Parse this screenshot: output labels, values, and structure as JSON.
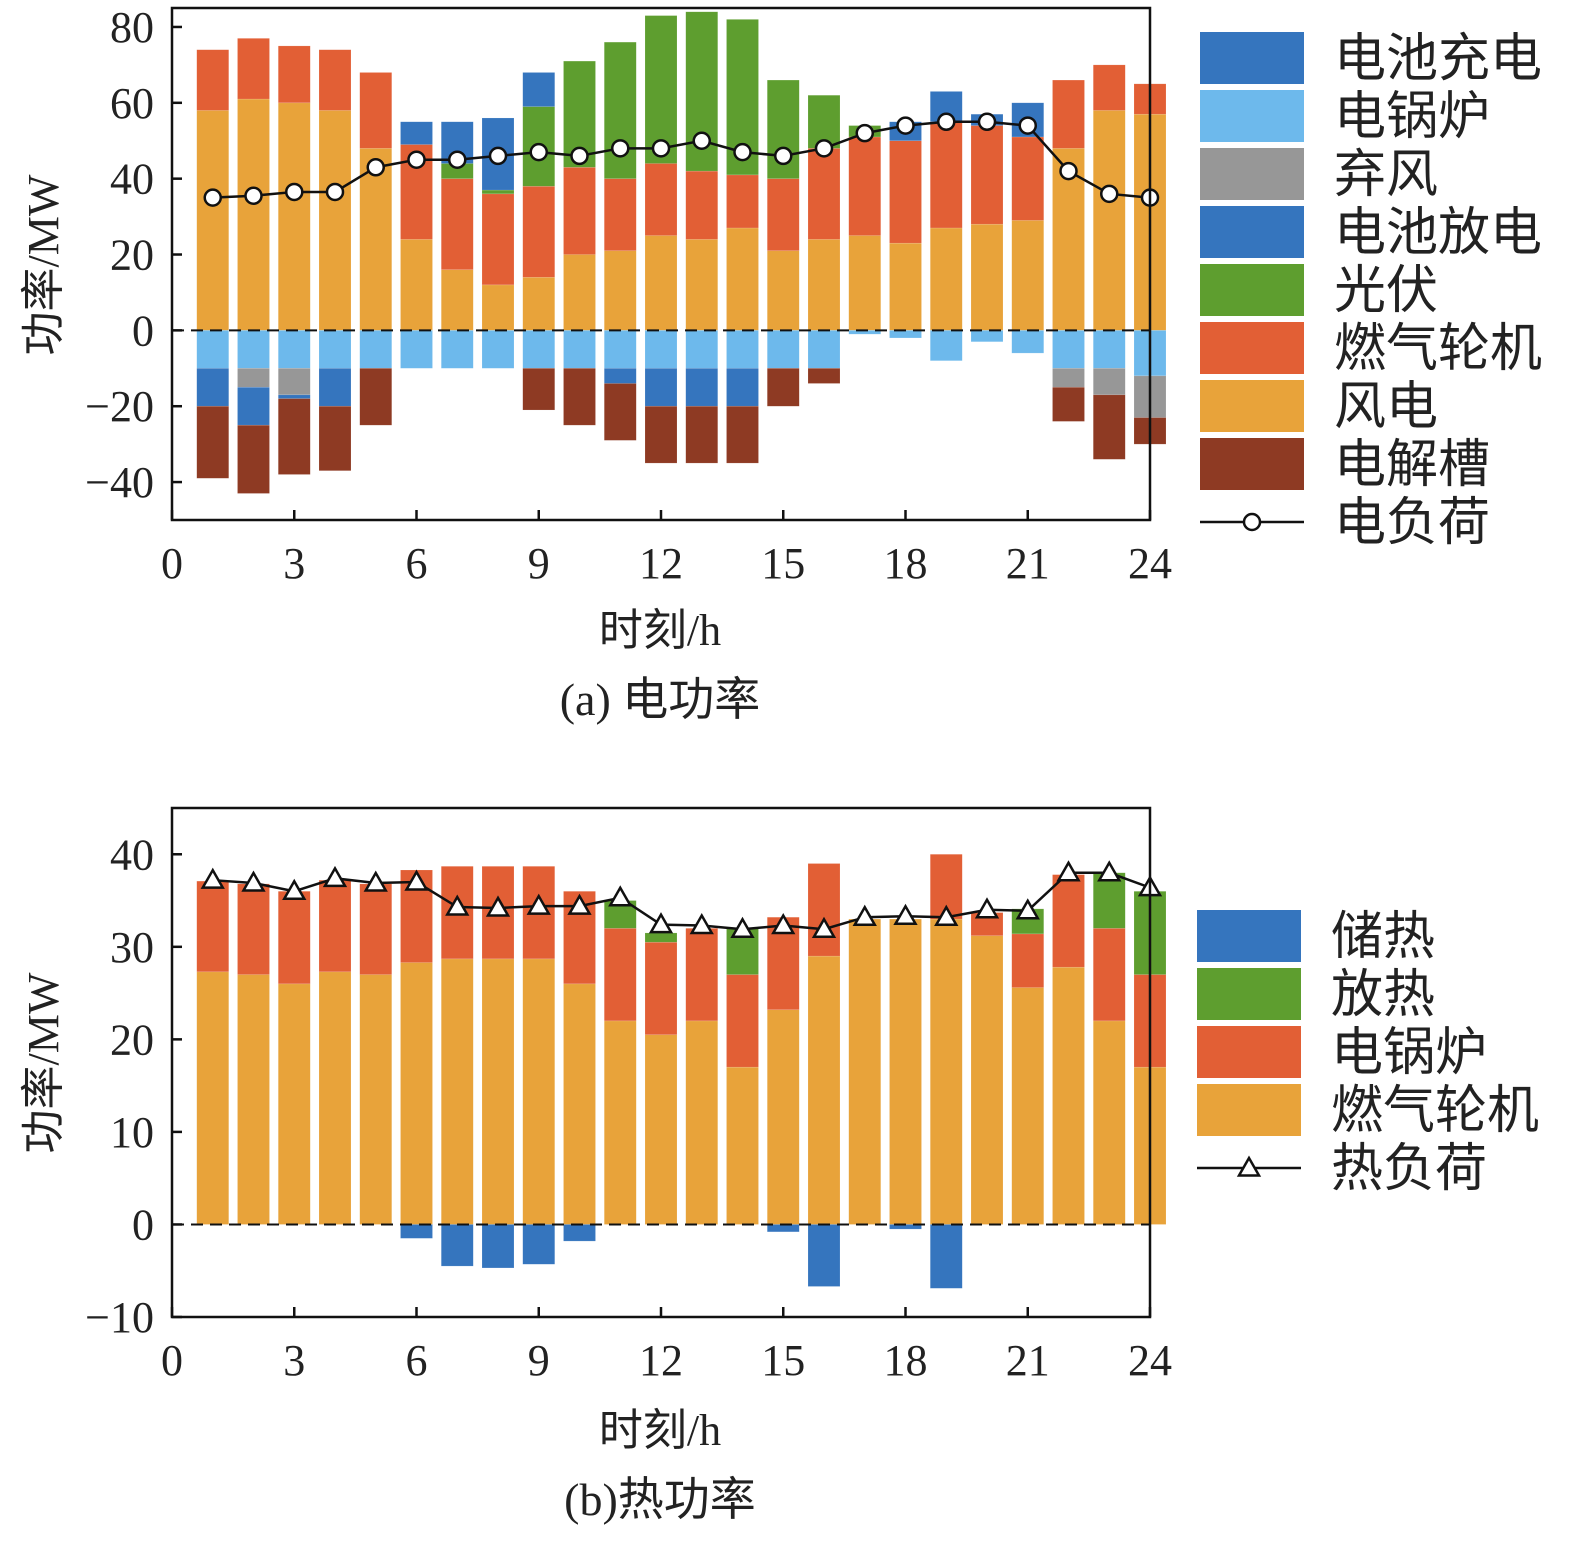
{
  "chart_data": [
    {
      "type": "bar",
      "stacked": true,
      "caption": "(a) 电功率",
      "xlabel": "时刻/h",
      "ylabel": "功率/MW",
      "xlim": [
        0,
        24
      ],
      "ylim": [
        -50,
        85
      ],
      "xticks": [
        0,
        3,
        6,
        9,
        12,
        15,
        18,
        21,
        24
      ],
      "yticks": [
        -40,
        -20,
        0,
        20,
        40,
        60,
        80
      ],
      "x": [
        1,
        2,
        3,
        4,
        5,
        6,
        7,
        8,
        9,
        10,
        11,
        12,
        13,
        14,
        15,
        16,
        17,
        18,
        19,
        20,
        21,
        22,
        23,
        24
      ],
      "positive_series": [
        {
          "name": "风电",
          "color": "#E8A33A",
          "values": [
            58,
            61,
            60,
            58,
            48,
            24,
            16,
            12,
            14,
            20,
            21,
            25,
            24,
            27,
            21,
            24,
            25,
            23,
            27,
            28,
            29,
            48,
            58,
            57
          ]
        },
        {
          "name": "燃气轮机",
          "color": "#E25F35",
          "values": [
            16,
            16,
            15,
            16,
            20,
            25,
            24,
            24,
            24,
            23,
            19,
            19,
            18,
            14,
            19,
            24,
            26,
            27,
            28,
            26,
            22,
            18,
            12,
            8
          ]
        },
        {
          "name": "光伏",
          "color": "#5E9E2F",
          "values": [
            0,
            0,
            0,
            0,
            0,
            0,
            4,
            1,
            21,
            28,
            36,
            39,
            42,
            41,
            26,
            14,
            3,
            0,
            0,
            0,
            0,
            0,
            0,
            0
          ]
        },
        {
          "name": "电池放电",
          "color": "#3575BE",
          "values": [
            0,
            0,
            0,
            0,
            0,
            6,
            11,
            19,
            9,
            0,
            0,
            0,
            0,
            0,
            0,
            0,
            0,
            5,
            8,
            3,
            9,
            0,
            0,
            0
          ]
        }
      ],
      "negative_series": [
        {
          "name": "电锅炉",
          "color": "#6DB9EC",
          "values": [
            -10,
            -10,
            -10,
            -10,
            -10,
            -10,
            -10,
            -10,
            -10,
            -10,
            -10,
            -10,
            -10,
            -10,
            -10,
            -10,
            -1,
            -2,
            -8,
            -3,
            -6,
            -10,
            -10,
            -12
          ]
        },
        {
          "name": "弃风",
          "color": "#979797",
          "values": [
            0,
            -5,
            -7,
            0,
            0,
            0,
            0,
            0,
            0,
            0,
            0,
            0,
            0,
            0,
            0,
            0,
            0,
            0,
            0,
            0,
            0,
            -5,
            -7,
            -11
          ]
        },
        {
          "name": "电池充电",
          "color": "#3575BE",
          "values": [
            -10,
            -10,
            -1,
            -10,
            0,
            0,
            0,
            0,
            0,
            0,
            -4,
            -10,
            -10,
            -10,
            0,
            0,
            0,
            0,
            0,
            0,
            0,
            0,
            0,
            0
          ]
        },
        {
          "name": "电解槽",
          "color": "#8E3A23",
          "values": [
            -19,
            -18,
            -20,
            -17,
            -15,
            0,
            0,
            0,
            -11,
            -15,
            -15,
            -15,
            -15,
            -15,
            -10,
            -4,
            0,
            0,
            0,
            0,
            0,
            -9,
            -17,
            -7
          ]
        }
      ],
      "line": {
        "name": "电负荷",
        "marker": "circle",
        "values": [
          35,
          35.5,
          36.5,
          36.5,
          43,
          45,
          45,
          46,
          47,
          46,
          48,
          48,
          50,
          47,
          46,
          48,
          52,
          54,
          55,
          55,
          54,
          42,
          36,
          35
        ]
      },
      "legend": [
        "电池充电",
        "电锅炉",
        "弃风",
        "电池放电",
        "光伏",
        "燃气轮机",
        "风电",
        "电解槽",
        "电负荷"
      ],
      "legend_colors": [
        "#3575BE",
        "#6DB9EC",
        "#979797",
        "#3575BE",
        "#5E9E2F",
        "#E25F35",
        "#E8A33A",
        "#8E3A23",
        "#222222"
      ],
      "legend_position": "right"
    },
    {
      "type": "bar",
      "stacked": true,
      "caption": "(b)热功率",
      "xlabel": "时刻/h",
      "ylabel": "功率/MW",
      "xlim": [
        0,
        24
      ],
      "ylim": [
        -10,
        45
      ],
      "xticks": [
        0,
        3,
        6,
        9,
        12,
        15,
        18,
        21,
        24
      ],
      "yticks": [
        -10,
        0,
        10,
        20,
        30,
        40
      ],
      "x": [
        1,
        2,
        3,
        4,
        5,
        6,
        7,
        8,
        9,
        10,
        11,
        12,
        13,
        14,
        15,
        16,
        17,
        18,
        19,
        20,
        21,
        22,
        23,
        24
      ],
      "positive_series": [
        {
          "name": "燃气轮机",
          "color": "#E8A33A",
          "values": [
            27.3,
            27,
            26,
            27.3,
            27,
            28.3,
            28.7,
            28.7,
            28.7,
            26,
            22,
            20.5,
            22,
            17,
            23.2,
            29,
            33,
            33,
            33,
            31.2,
            25.6,
            27.8,
            22,
            17
          ]
        },
        {
          "name": "电锅炉",
          "color": "#E25F35",
          "values": [
            9.8,
            9.8,
            10,
            9.9,
            9.8,
            10,
            10,
            10,
            10,
            10,
            10,
            10,
            10,
            10,
            10,
            10,
            0,
            0,
            7,
            2.5,
            5.8,
            10,
            10,
            10
          ]
        },
        {
          "name": "放热",
          "color": "#5E9E2F",
          "values": [
            0,
            0,
            0,
            0,
            0,
            0,
            0,
            0,
            0,
            0,
            3,
            1,
            0,
            5,
            0,
            0,
            0,
            0,
            0,
            0,
            2.7,
            0,
            6,
            9
          ]
        },
        {
          "name": "储热",
          "color": "#3575BE",
          "values": [
            0,
            0,
            0,
            0,
            0,
            0,
            0,
            0,
            0,
            0,
            0,
            0,
            0,
            0,
            0,
            0,
            0,
            0,
            0,
            0,
            0,
            0,
            0,
            0
          ]
        }
      ],
      "negative_series": [
        {
          "name": "储热",
          "color": "#3575BE",
          "values": [
            0,
            0,
            0,
            0,
            0,
            -1.5,
            -4.5,
            -4.7,
            -4.3,
            -1.8,
            0,
            0,
            0,
            0,
            -0.8,
            -6.7,
            0,
            -0.5,
            -6.9,
            0,
            0,
            0,
            0,
            0
          ]
        }
      ],
      "line": {
        "name": "热负荷",
        "marker": "triangle",
        "values": [
          37.2,
          36.9,
          36,
          37.4,
          36.9,
          37,
          34.3,
          34.2,
          34.4,
          34.4,
          35.3,
          32.4,
          32.3,
          31.9,
          32.3,
          31.9,
          33.2,
          33.3,
          33.2,
          34,
          33.9,
          38,
          38,
          36.4
        ]
      },
      "legend": [
        "储热",
        "放热",
        "电锅炉",
        "燃气轮机",
        "热负荷"
      ],
      "legend_colors": [
        "#3575BE",
        "#5E9E2F",
        "#E25F35",
        "#E8A33A",
        "#222222"
      ],
      "legend_position": "right"
    }
  ]
}
